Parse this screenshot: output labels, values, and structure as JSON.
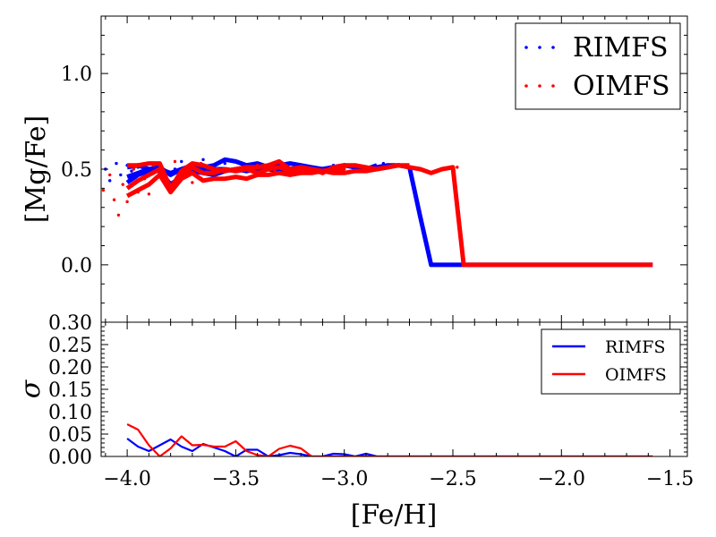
{
  "chart_data": [
    {
      "type": "line",
      "panel": "top",
      "ylabel": "[Mg/Fe]",
      "xlim": [
        -4.12,
        -1.42
      ],
      "ylim": [
        -0.3,
        1.3
      ],
      "xticks": [
        -4.0,
        -3.5,
        -3.0,
        -2.5,
        -2.0,
        -1.5
      ],
      "yticks": [
        0.0,
        0.5,
        1.0
      ],
      "ytick_labels": [
        "0.0",
        "0.5",
        "1.0"
      ],
      "legend": {
        "placement": "top-right",
        "style": "dotted",
        "entries": [
          "RIMFS",
          "OIMFS"
        ]
      },
      "series": [
        {
          "name": "RIMFS",
          "color": "#0000ff",
          "role": "line-a",
          "x": [
            -4.0,
            -3.95,
            -3.9,
            -3.85,
            -3.8,
            -3.75,
            -3.7,
            -3.65,
            -3.6,
            -3.55,
            -3.5,
            -3.45,
            -3.4,
            -3.35,
            -3.3,
            -3.25,
            -3.2,
            -3.15,
            -3.1,
            -3.05,
            -3.0,
            -2.95,
            -2.9,
            -2.85,
            -2.8,
            -2.75,
            -2.7,
            -2.65,
            -2.6,
            -2.55,
            -2.5,
            -2.0,
            -1.58
          ],
          "y": [
            0.43,
            0.47,
            0.49,
            0.5,
            0.48,
            0.5,
            0.51,
            0.49,
            0.5,
            0.5,
            0.49,
            0.5,
            0.51,
            0.5,
            0.49,
            0.5,
            0.51,
            0.5,
            0.5,
            0.51,
            0.52,
            0.51,
            0.5,
            0.51,
            0.52,
            0.52,
            0.51,
            0.25,
            0.0,
            0.0,
            0.0,
            0.0,
            0.0
          ]
        },
        {
          "name": "RIMFS",
          "color": "#0000ff",
          "role": "line-b",
          "x": [
            -4.0,
            -3.95,
            -3.9,
            -3.85,
            -3.8,
            -3.75,
            -3.7,
            -3.65,
            -3.6,
            -3.55,
            -3.5,
            -3.45,
            -3.4,
            -3.35,
            -3.3,
            -3.25,
            -3.2,
            -3.15,
            -3.1,
            -3.05,
            -3.0,
            -2.95,
            -2.9,
            -2.85
          ],
          "y": [
            0.51,
            0.52,
            0.5,
            0.51,
            0.47,
            0.5,
            0.52,
            0.51,
            0.52,
            0.55,
            0.54,
            0.52,
            0.53,
            0.51,
            0.52,
            0.53,
            0.52,
            0.51,
            0.5,
            0.51,
            0.52,
            0.51,
            0.5,
            0.52
          ]
        },
        {
          "name": "RIMFS",
          "color": "#0000ff",
          "role": "line-c",
          "x": [
            -4.0,
            -3.95,
            -3.9,
            -3.85,
            -3.8,
            -3.75,
            -3.7,
            -3.65,
            -3.6,
            -3.55,
            -3.5,
            -3.45,
            -3.4,
            -3.35,
            -3.3
          ],
          "y": [
            0.46,
            0.48,
            0.5,
            0.49,
            0.42,
            0.46,
            0.49,
            0.48,
            0.47,
            0.49,
            0.5,
            0.49,
            0.5,
            0.52,
            0.5
          ]
        },
        {
          "name": "RIMFS",
          "color": "#0000ff",
          "role": "points",
          "x": [
            -4.1,
            -4.08,
            -4.05,
            -4.03,
            -4.0,
            -3.98,
            -3.95,
            -3.92,
            -3.9,
            -3.86,
            -3.82,
            -3.78,
            -3.75,
            -3.72,
            -3.68,
            -3.65,
            -3.6,
            -3.55,
            -3.5,
            -3.45,
            -3.38,
            -3.3,
            -3.2,
            -3.05,
            -2.9,
            -2.82
          ],
          "y": [
            0.5,
            0.44,
            0.53,
            0.47,
            0.52,
            0.49,
            0.51,
            0.46,
            0.48,
            0.53,
            0.45,
            0.5,
            0.54,
            0.48,
            0.52,
            0.55,
            0.47,
            0.53,
            0.5,
            0.49,
            0.51,
            0.54,
            0.5,
            0.52,
            0.51,
            0.53
          ]
        },
        {
          "name": "OIMFS",
          "color": "#ff0000",
          "role": "line-a",
          "x": [
            -4.0,
            -3.95,
            -3.9,
            -3.85,
            -3.8,
            -3.75,
            -3.7,
            -3.65,
            -3.6,
            -3.55,
            -3.5,
            -3.45,
            -3.4,
            -3.35,
            -3.3,
            -3.25,
            -3.2,
            -3.15,
            -3.1,
            -3.05,
            -3.0,
            -2.95,
            -2.9,
            -2.85,
            -2.8,
            -2.75,
            -2.7,
            -2.65,
            -2.6,
            -2.55,
            -2.5,
            -2.45,
            -2.0,
            -1.58
          ],
          "y": [
            0.36,
            0.39,
            0.42,
            0.47,
            0.38,
            0.45,
            0.48,
            0.44,
            0.45,
            0.45,
            0.46,
            0.45,
            0.47,
            0.47,
            0.48,
            0.47,
            0.48,
            0.48,
            0.49,
            0.48,
            0.48,
            0.49,
            0.49,
            0.5,
            0.51,
            0.52,
            0.51,
            0.5,
            0.48,
            0.5,
            0.51,
            0.0,
            0.0,
            0.0
          ]
        },
        {
          "name": "OIMFS",
          "color": "#ff0000",
          "role": "line-b",
          "x": [
            -4.0,
            -3.95,
            -3.9,
            -3.85,
            -3.8,
            -3.75,
            -3.7,
            -3.65,
            -3.6,
            -3.55,
            -3.5,
            -3.45,
            -3.4,
            -3.35,
            -3.3,
            -3.25,
            -3.2,
            -3.15,
            -3.1,
            -3.05,
            -3.0,
            -2.95,
            -2.9,
            -2.85,
            -2.8,
            -2.75,
            -2.7
          ],
          "y": [
            0.52,
            0.52,
            0.53,
            0.53,
            0.4,
            0.49,
            0.53,
            0.52,
            0.5,
            0.49,
            0.5,
            0.51,
            0.51,
            0.52,
            0.54,
            0.5,
            0.51,
            0.5,
            0.48,
            0.51,
            0.52,
            0.52,
            0.51,
            0.5,
            0.51,
            0.52,
            0.52
          ]
        },
        {
          "name": "OIMFS",
          "color": "#ff0000",
          "role": "line-c",
          "x": [
            -4.0,
            -3.95,
            -3.9,
            -3.85,
            -3.8,
            -3.75,
            -3.7,
            -3.65,
            -3.6,
            -3.55,
            -3.5,
            -3.45,
            -3.4,
            -3.35,
            -3.3,
            -3.25,
            -3.2,
            -3.15,
            -3.1,
            -3.05,
            -3.0
          ],
          "y": [
            0.4,
            0.44,
            0.47,
            0.5,
            0.39,
            0.47,
            0.51,
            0.48,
            0.48,
            0.5,
            0.49,
            0.5,
            0.48,
            0.5,
            0.51,
            0.49,
            0.49,
            0.5,
            0.49,
            0.5,
            0.5
          ]
        },
        {
          "name": "OIMFS",
          "color": "#ff0000",
          "role": "points",
          "x": [
            -4.11,
            -4.08,
            -4.06,
            -4.04,
            -4.02,
            -4.0,
            -3.97,
            -3.95,
            -3.92,
            -3.9,
            -3.88,
            -3.85,
            -3.82,
            -3.78,
            -3.74,
            -3.7,
            -3.66,
            -3.6,
            -3.55,
            -3.48,
            -3.4,
            -3.32,
            -3.2,
            -3.0,
            -2.8,
            -2.48
          ],
          "y": [
            0.39,
            0.47,
            0.34,
            0.26,
            0.42,
            0.33,
            0.5,
            0.38,
            0.45,
            0.37,
            0.52,
            0.46,
            0.41,
            0.54,
            0.49,
            0.43,
            0.53,
            0.45,
            0.5,
            0.46,
            0.52,
            0.49,
            0.51,
            0.5,
            0.51,
            0.51
          ]
        }
      ]
    },
    {
      "type": "line",
      "panel": "bottom",
      "xlabel": "[Fe/H]",
      "ylabel": "σ",
      "xlim": [
        -4.12,
        -1.42
      ],
      "ylim": [
        0.0,
        0.3
      ],
      "xticks": [
        -4.0,
        -3.5,
        -3.0,
        -2.5,
        -2.0,
        -1.5
      ],
      "xtick_labels": [
        "−4.0",
        "−3.5",
        "−3.0",
        "−2.5",
        "−2.0",
        "−1.5"
      ],
      "yticks": [
        0.0,
        0.05,
        0.1,
        0.15,
        0.2,
        0.25,
        0.3
      ],
      "ytick_labels": [
        "0.00",
        "0.05",
        "0.10",
        "0.15",
        "0.20",
        "0.25",
        "0.30"
      ],
      "legend": {
        "placement": "top-right",
        "style": "line",
        "entries": [
          "RIMFS",
          "OIMFS"
        ]
      },
      "series": [
        {
          "name": "RIMFS",
          "color": "#0000ff",
          "x": [
            -4.0,
            -3.95,
            -3.9,
            -3.85,
            -3.8,
            -3.75,
            -3.7,
            -3.65,
            -3.6,
            -3.55,
            -3.5,
            -3.45,
            -3.4,
            -3.35,
            -3.3,
            -3.25,
            -3.2,
            -3.15,
            -3.1,
            -3.05,
            -3.0,
            -2.95,
            -2.9,
            -2.85,
            -2.8,
            -2.75,
            -2.7,
            -2.5,
            -2.0,
            -1.58
          ],
          "y": [
            0.04,
            0.022,
            0.012,
            0.025,
            0.038,
            0.022,
            0.012,
            0.028,
            0.02,
            0.012,
            0.0,
            0.015,
            0.015,
            0.0,
            0.003,
            0.008,
            0.005,
            0.0,
            0.0,
            0.006,
            0.005,
            0.0,
            0.006,
            0.0,
            0.0,
            0.0,
            0.0,
            0.0,
            0.0,
            0.0
          ]
        },
        {
          "name": "OIMFS",
          "color": "#ff0000",
          "x": [
            -4.0,
            -3.95,
            -3.9,
            -3.85,
            -3.8,
            -3.75,
            -3.7,
            -3.65,
            -3.6,
            -3.55,
            -3.5,
            -3.45,
            -3.4,
            -3.35,
            -3.3,
            -3.25,
            -3.2,
            -3.15,
            -3.1,
            -3.05,
            -3.0,
            -2.95,
            -2.9,
            -2.85,
            -2.8,
            -2.75,
            -2.7,
            -2.5,
            -2.0,
            -1.58
          ],
          "y": [
            0.072,
            0.06,
            0.025,
            0.0,
            0.018,
            0.045,
            0.025,
            0.026,
            0.022,
            0.022,
            0.034,
            0.012,
            0.003,
            0.0,
            0.017,
            0.024,
            0.018,
            0.0,
            0.0,
            0.0,
            0.0,
            0.0,
            0.0,
            0.0,
            0.0,
            0.0,
            0.0,
            0.0,
            0.0,
            0.0
          ]
        }
      ]
    }
  ]
}
